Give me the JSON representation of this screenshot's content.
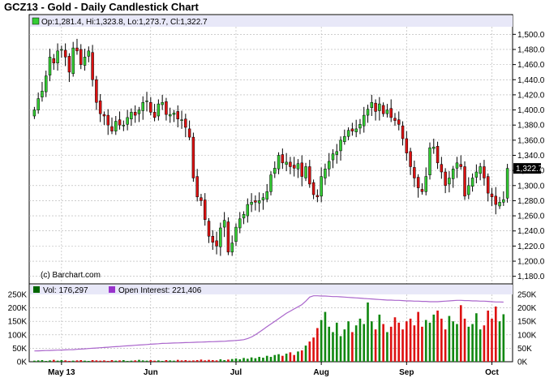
{
  "chart_data": [
    {
      "type": "candlestick",
      "title": "GCZ13 - Gold - Daily Candlestick Chart",
      "legend": "Op:1,281.4, Hi:1,323.8, Lo:1,273.7, Cl:1,322.7",
      "credit": "(c) Barchart.com",
      "last_price_label": "1,322.7",
      "last_price": 1322.7,
      "ylim": [
        1170,
        1510
      ],
      "yticks": [
        1180,
        1200,
        1220,
        1240,
        1260,
        1280,
        1300,
        1320,
        1340,
        1360,
        1380,
        1400,
        1420,
        1440,
        1460,
        1480,
        1500
      ],
      "ytick_labels": [
        "1,180.0",
        "1,200.0",
        "1,220.0",
        "1,240.0",
        "1,260.0",
        "1,280.0",
        "1,300.0",
        "1,320.0",
        "1,340.0",
        "1,360.0",
        "1,380.0",
        "1,400.0",
        "1,420.0",
        "1,440.0",
        "1,460.0",
        "1,480.0",
        "1,500.0"
      ],
      "x_labels": [
        "May 13",
        "Jun",
        "Jul",
        "Aug",
        "Sep",
        "Oct"
      ],
      "x_label_index": [
        7,
        30,
        52,
        74,
        96,
        118
      ],
      "grid": true,
      "colors": {
        "up": "#33cc33",
        "down": "#dd1111",
        "outline": "#000000",
        "grid": "#b0b0b0",
        "title_bg": "#ffffff",
        "legend_bg": "#ffffff",
        "last_bg": "#000000"
      },
      "closes": [
        1400,
        1415,
        1425,
        1445,
        1470,
        1462,
        1478,
        1480,
        1470,
        1450,
        1482,
        1478,
        1460,
        1470,
        1478,
        1440,
        1410,
        1395,
        1392,
        1380,
        1372,
        1385,
        1380,
        1380,
        1390,
        1397,
        1393,
        1400,
        1410,
        1412,
        1397,
        1390,
        1408,
        1410,
        1394,
        1394,
        1396,
        1388,
        1387,
        1377,
        1364,
        1310,
        1285,
        1280,
        1255,
        1233,
        1225,
        1220,
        1244,
        1254,
        1212,
        1224,
        1245,
        1256,
        1262,
        1275,
        1278,
        1278,
        1280,
        1284,
        1292,
        1314,
        1323,
        1340,
        1330,
        1331,
        1325,
        1323,
        1329,
        1312,
        1325,
        1302,
        1288,
        1285,
        1312,
        1322,
        1332,
        1342,
        1345,
        1360,
        1365,
        1373,
        1372,
        1375,
        1381,
        1393,
        1401,
        1410,
        1398,
        1408,
        1395,
        1400,
        1390,
        1386,
        1381,
        1362,
        1343,
        1325,
        1310,
        1297,
        1292,
        1312,
        1350,
        1351,
        1330,
        1318,
        1300,
        1310,
        1322,
        1330,
        1325,
        1286,
        1300,
        1310,
        1318,
        1325,
        1310,
        1290,
        1285,
        1275,
        1278,
        1281.4,
        1322.7
      ],
      "volume": {
        "label": "Vol: 176,297",
        "ylim": [
          0,
          250000
        ],
        "yticks": [
          0,
          50000,
          100000,
          150000,
          200000,
          250000
        ],
        "ytick_labels": [
          "0K",
          "50K",
          "100K",
          "150K",
          "200K",
          "250K"
        ],
        "values": [
          4000,
          5000,
          6000,
          3000,
          5000,
          7000,
          4000,
          6000,
          5000,
          3000,
          4000,
          5000,
          6000,
          4000,
          3000,
          6000,
          5000,
          4000,
          5000,
          3000,
          6000,
          4000,
          5000,
          6000,
          3000,
          4000,
          5000,
          7000,
          5000,
          4000,
          6000,
          4000,
          5000,
          3000,
          6000,
          5000,
          4000,
          7000,
          5000,
          6000,
          4000,
          5000,
          6000,
          8000,
          5000,
          7000,
          6000,
          5000,
          9000,
          6000,
          8000,
          10000,
          12000,
          9000,
          14000,
          11000,
          16000,
          13000,
          18000,
          15000,
          22000,
          18000,
          25000,
          28000,
          22000,
          30000,
          35000,
          25000,
          38000,
          42000,
          60000,
          75000,
          90000,
          125000,
          155000,
          185000,
          130000,
          110000,
          145000,
          95000,
          120000,
          150000,
          110000,
          135000,
          160000,
          140000,
          220000,
          150000,
          120000,
          175000,
          140000,
          110000,
          130000,
          165000,
          145000,
          120000,
          150000,
          160000,
          135000,
          185000,
          130000,
          155000,
          145000,
          175000,
          190000,
          160000,
          120000,
          170000,
          150000,
          140000,
          210000,
          160000,
          130000,
          140000,
          180000,
          120000,
          135000,
          190000,
          160000,
          205000,
          150000,
          176297
        ]
      },
      "open_interest": {
        "label": "Open Interest: 221,406",
        "values": [
          40000,
          40500,
          41000,
          41500,
          42000,
          42500,
          43000,
          43500,
          44000,
          44500,
          45000,
          46000,
          47000,
          48000,
          49000,
          50000,
          51000,
          52000,
          53000,
          54000,
          55000,
          56000,
          57000,
          58000,
          59000,
          60000,
          61000,
          62000,
          63000,
          64000,
          65000,
          66000,
          67000,
          68000,
          68500,
          69000,
          69500,
          70000,
          70500,
          71000,
          71500,
          72000,
          72500,
          73000,
          73500,
          74000,
          74500,
          75000,
          75500,
          76000,
          77000,
          78000,
          79000,
          80000,
          82000,
          86000,
          92000,
          100000,
          110000,
          120000,
          130000,
          140000,
          150000,
          160000,
          170000,
          180000,
          188000,
          196000,
          204000,
          212000,
          225000,
          240000,
          245000,
          245000,
          244000,
          244000,
          243000,
          242000,
          242000,
          241000,
          240000,
          239000,
          238000,
          237000,
          236000,
          235000,
          234000,
          233000,
          232000,
          231000,
          230000,
          229000,
          229000,
          228000,
          228000,
          227000,
          226000,
          226000,
          225000,
          225000,
          224000,
          224000,
          223000,
          223000,
          223000,
          224000,
          225000,
          226000,
          227000,
          228000,
          228000,
          227000,
          227000,
          226000,
          226000,
          225000,
          225000,
          224000,
          223000,
          222000,
          222000,
          221406
        ],
        "color": "#aa66cc"
      }
    }
  ]
}
